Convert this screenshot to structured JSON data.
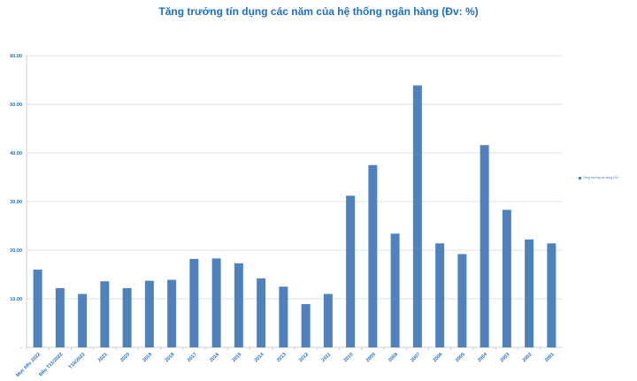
{
  "chart_data": {
    "type": "bar",
    "title": "Tăng trưởng tín dụng các năm của hệ thống ngân hàng (Đv: %)",
    "categories": [
      "Mục tiêu 2022",
      "Đầu T11/2022",
      "T10/2022",
      "2021",
      "2020",
      "2019",
      "2018",
      "2017",
      "2016",
      "2015",
      "2014",
      "2013",
      "2012",
      "2011",
      "2010",
      "2009",
      "2008",
      "2007",
      "2006",
      "2005",
      "2004",
      "2003",
      "2002",
      "2001"
    ],
    "series": [
      {
        "name": "Tăng trưởng tín dụng (%)",
        "values": [
          16.0,
          12.2,
          11.0,
          13.6,
          12.2,
          13.7,
          13.9,
          18.2,
          18.3,
          17.3,
          14.2,
          12.5,
          8.9,
          11.0,
          31.2,
          37.5,
          23.4,
          53.9,
          21.4,
          19.2,
          41.6,
          28.3,
          22.2,
          21.4
        ]
      }
    ],
    "yticks": [
      "-",
      "10.00",
      "20.00",
      "30.00",
      "40.00",
      "50.00",
      "60.00"
    ],
    "ylim": [
      0,
      60
    ],
    "grid": true,
    "legend": "right",
    "colors": {
      "bar": "#4f81bd",
      "text": "#1f6fbf",
      "grid": "#d9d9d9"
    }
  }
}
